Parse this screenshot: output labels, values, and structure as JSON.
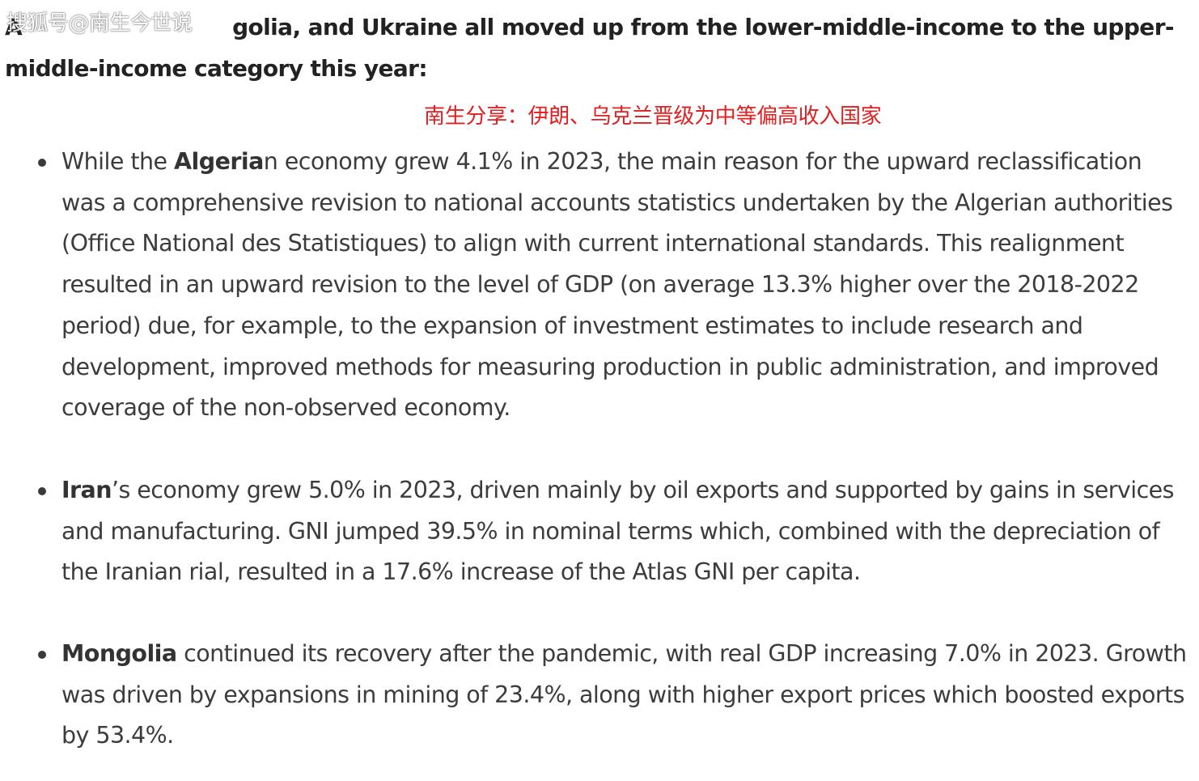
{
  "heading": {
    "text": "Algeria, Iran, Mongolia, and Ukraine all moved up from the lower-middle-income to the upper-middle-income category this year:",
    "visible_prefix": "A",
    "visible_rest": "golia, and Ukraine all moved up from the lower-middle-income to the upper-middle-income category this year:"
  },
  "watermark": {
    "text": "搜狐号@南生今世说"
  },
  "caption": {
    "text": "南生分享：伊朗、乌克兰晋级为中等偏高收入国家",
    "color": "#e02020"
  },
  "items": [
    {
      "bold": "Algeria",
      "bold_suffix": "n",
      "rest": " economy grew 4.1% in 2023, the main reason for the upward reclassification was a comprehensive revision to national accounts statistics undertaken by the Algerian authorities (Office National des Statistiques) to align with current international standards. This realignment resulted in an upward revision to the level of GDP (on average 13.3% higher over the 2018-2022 period) due, for example, to the expansion of investment estimates to include research and development, improved methods for measuring production in public administration, and improved coverage of the non-observed economy.",
      "lead": "While the "
    },
    {
      "bold": "Iran",
      "rest": "’s economy grew 5.0% in 2023, driven mainly by oil exports and supported by gains in services and manufacturing. GNI jumped 39.5% in nominal terms which, combined with the depreciation of the Iranian rial, resulted in a 17.6% increase of the Atlas GNI per capita."
    },
    {
      "bold": "Mongolia",
      "rest": " continued its recovery after the pandemic, with real GDP increasing 7.0% in 2023. Growth was driven by expansions in mining of 23.4%, along with higher export prices which boosted exports by 53.4%."
    }
  ]
}
